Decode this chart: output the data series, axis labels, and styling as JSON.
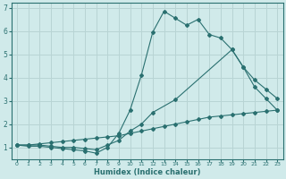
{
  "bg_color": "#d0eaea",
  "grid_color": "#b8d4d4",
  "line_color": "#2a7070",
  "xlabel": "Humidex (Indice chaleur)",
  "xlim": [
    -0.5,
    23.5
  ],
  "ylim": [
    0.5,
    7.2
  ],
  "xticks": [
    0,
    1,
    2,
    3,
    4,
    5,
    6,
    7,
    8,
    9,
    10,
    11,
    12,
    13,
    14,
    15,
    16,
    17,
    18,
    19,
    20,
    21,
    22,
    23
  ],
  "yticks": [
    1,
    2,
    3,
    4,
    5,
    6,
    7
  ],
  "curve1_x": [
    0,
    1,
    2,
    3,
    4,
    5,
    6,
    7,
    8,
    9,
    10,
    11,
    12,
    13,
    14,
    15,
    16,
    17,
    18,
    19,
    20,
    21,
    22,
    23
  ],
  "curve1_y": [
    1.1,
    1.05,
    1.05,
    1.0,
    0.95,
    0.9,
    0.85,
    0.75,
    1.0,
    1.6,
    2.6,
    4.1,
    5.95,
    6.85,
    6.55,
    6.25,
    6.5,
    5.85,
    5.7,
    5.2,
    4.45,
    3.6,
    3.1,
    2.6
  ],
  "curve2_x": [
    0,
    1,
    2,
    3,
    4,
    5,
    6,
    7,
    8,
    9,
    10,
    11,
    12,
    14,
    19,
    20,
    21,
    22,
    23
  ],
  "curve2_y": [
    1.1,
    1.1,
    1.1,
    1.05,
    1.0,
    1.0,
    0.95,
    0.9,
    1.1,
    1.3,
    1.7,
    2.0,
    2.5,
    3.05,
    5.2,
    4.45,
    3.9,
    3.5,
    3.1
  ],
  "curve3_x": [
    0,
    1,
    2,
    3,
    4,
    5,
    6,
    7,
    8,
    9,
    10,
    11,
    12,
    13,
    14,
    15,
    16,
    17,
    18,
    19,
    20,
    21,
    22,
    23
  ],
  "curve3_y": [
    1.1,
    1.1,
    1.15,
    1.2,
    1.25,
    1.3,
    1.35,
    1.4,
    1.45,
    1.5,
    1.6,
    1.7,
    1.8,
    1.9,
    2.0,
    2.1,
    2.2,
    2.3,
    2.35,
    2.4,
    2.45,
    2.5,
    2.55,
    2.6
  ]
}
